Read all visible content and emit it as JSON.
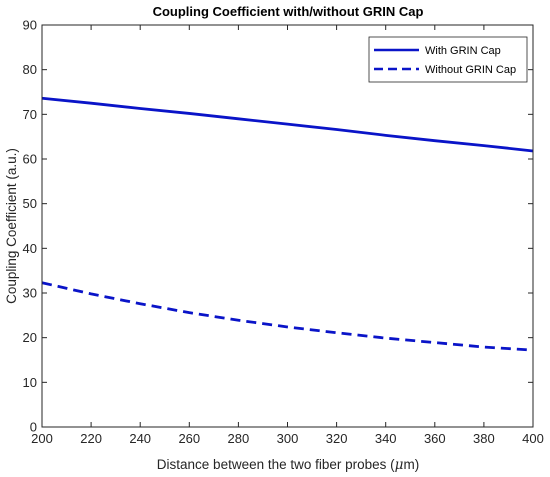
{
  "chart_data": {
    "type": "line",
    "title": "Coupling Coefficient with/without GRIN Cap",
    "xlabel_main": "Distance between the two fiber probes (",
    "xlabel_unit": "μ",
    "xlabel_tail": "m)",
    "ylabel": "Coupling Coefficient (a.u.)",
    "xlim": [
      200,
      400
    ],
    "ylim": [
      0,
      90
    ],
    "xticks": [
      200,
      220,
      240,
      260,
      280,
      300,
      320,
      340,
      360,
      380,
      400
    ],
    "yticks": [
      0,
      10,
      20,
      30,
      40,
      50,
      60,
      70,
      80,
      90
    ],
    "legend_position": "top-right",
    "x": [
      200,
      220,
      240,
      260,
      280,
      300,
      320,
      340,
      360,
      380,
      400
    ],
    "series": [
      {
        "name": "With GRIN Cap",
        "style": "solid",
        "color": "#0a14c8",
        "values": [
          73.6,
          72.5,
          71.3,
          70.2,
          69.0,
          67.8,
          66.6,
          65.3,
          64.1,
          63.0,
          61.8
        ]
      },
      {
        "name": "Without GRIN Cap",
        "style": "dashed",
        "color": "#0a14c8",
        "values": [
          32.3,
          29.8,
          27.6,
          25.6,
          23.9,
          22.4,
          21.1,
          19.9,
          18.9,
          17.9,
          17.2
        ]
      }
    ]
  }
}
